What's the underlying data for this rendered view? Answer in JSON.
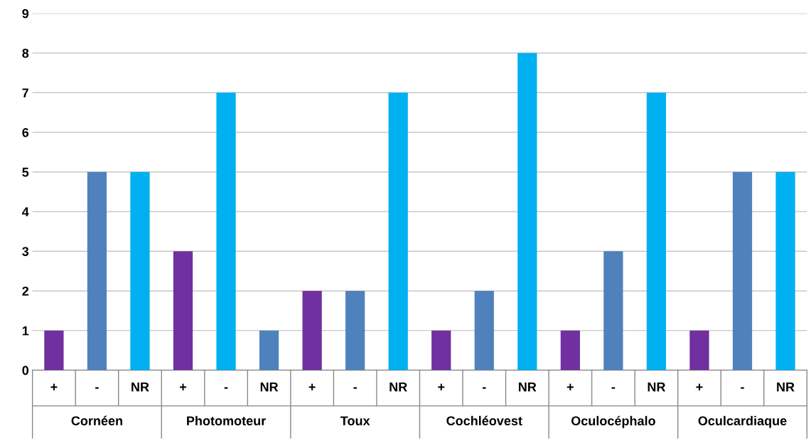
{
  "chart_data": {
    "type": "bar",
    "categories": [
      "+",
      "-",
      "NR",
      "+",
      "-",
      "NR",
      "+",
      "-",
      "NR",
      "+",
      "-",
      "NR",
      "+",
      "-",
      "NR",
      "+",
      "-",
      "NR"
    ],
    "values": [
      1,
      5,
      5,
      3,
      7,
      1,
      2,
      2,
      7,
      1,
      2,
      8,
      1,
      3,
      7,
      1,
      5,
      5
    ],
    "colors": [
      "#7030a0",
      "#4f81bd",
      "#00b0f0",
      "#7030a0",
      "#00b0f0",
      "#4f81bd",
      "#7030a0",
      "#4f81bd",
      "#00b0f0",
      "#7030a0",
      "#4f81bd",
      "#00b0f0",
      "#7030a0",
      "#4f81bd",
      "#00b0f0",
      "#7030a0",
      "#4f81bd",
      "#00b0f0"
    ],
    "annotations": [
      "Cornéen",
      "Photomoteur",
      "Toux",
      "Cochléovest",
      "Oculocéphalo",
      "Oculcardiaque"
    ],
    "ylim": [
      0,
      9
    ],
    "yticks": [
      0,
      1,
      2,
      3,
      4,
      5,
      6,
      7,
      8,
      9
    ],
    "grid": "y"
  }
}
